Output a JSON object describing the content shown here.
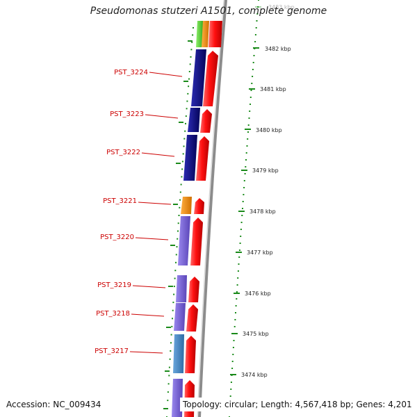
{
  "title": "Pseudomonas stutzeri A1501, complete genome",
  "footer": {
    "accession": "Accession: NC_009434",
    "summary": "Topology: circular; Length: 4,567,418 bp; Genes: 4,201"
  },
  "scale": {
    "unit": "kbp",
    "ticks": [
      "3483 kbp",
      "3482 kbp",
      "3481 kbp",
      "3480 kbp",
      "3479 kbp",
      "3478 kbp",
      "3477 kbp",
      "3476 kbp",
      "3475 kbp",
      "3474 kbp"
    ]
  },
  "genes": [
    {
      "name": "PST_3224",
      "strand_minus_color": "#0a0a80",
      "strand_plus_color": "#e80000"
    },
    {
      "name": "PST_3223",
      "strand_minus_color": "#0a0a80",
      "strand_plus_color": "#e80000"
    },
    {
      "name": "PST_3222",
      "strand_minus_color": "#0a0a80",
      "strand_plus_color": "#e80000"
    },
    {
      "name": "PST_3221",
      "strand_minus_color": "#f08c10",
      "strand_plus_color": "#e80000"
    },
    {
      "name": "PST_3220",
      "strand_minus_color": "#7a63d6",
      "strand_plus_color": "#e80000"
    },
    {
      "name": "PST_3219",
      "strand_minus_color": "#7a63d6",
      "strand_plus_color": "#e80000"
    },
    {
      "name": "PST_3218",
      "strand_minus_color": "#7a63d6",
      "strand_plus_color": "#e80000"
    },
    {
      "name": "PST_3217",
      "strand_minus_color": "#4a86c0",
      "strand_plus_color": "#e80000"
    }
  ],
  "colors": {
    "backbone": "#8c8c8c",
    "dotted_track": "#1a8a1a",
    "label_line": "#cc0000",
    "top_green": "#4fcc2c",
    "top_orange": "#f08c10"
  }
}
